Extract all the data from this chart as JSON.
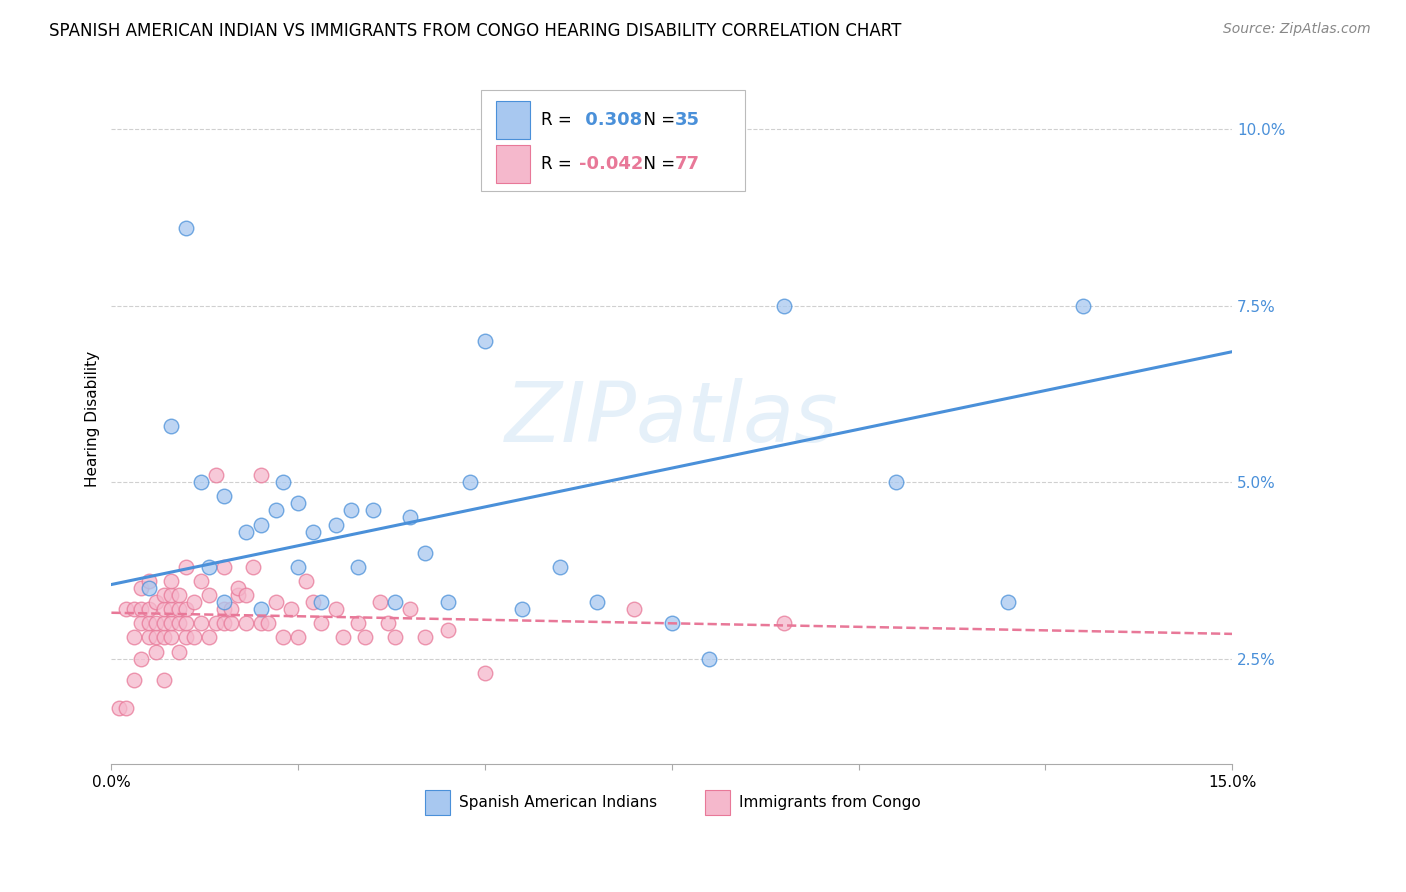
{
  "title": "SPANISH AMERICAN INDIAN VS IMMIGRANTS FROM CONGO HEARING DISABILITY CORRELATION CHART",
  "source": "Source: ZipAtlas.com",
  "ylabel": "Hearing Disability",
  "ytick_labels": [
    "2.5%",
    "5.0%",
    "7.5%",
    "10.0%"
  ],
  "ytick_values": [
    0.025,
    0.05,
    0.075,
    0.1
  ],
  "xlim": [
    0.0,
    0.15
  ],
  "ylim": [
    0.01,
    0.108
  ],
  "watermark": "ZIPatlas",
  "blue_R": 0.308,
  "blue_N": 35,
  "pink_R": -0.042,
  "pink_N": 77,
  "blue_label": "Spanish American Indians",
  "pink_label": "Immigrants from Congo",
  "blue_color": "#a8c8f0",
  "pink_color": "#f5b8cc",
  "blue_line_color": "#4a90d9",
  "pink_line_color": "#e87898",
  "blue_scatter_x": [
    0.005,
    0.008,
    0.01,
    0.012,
    0.013,
    0.015,
    0.015,
    0.018,
    0.02,
    0.02,
    0.022,
    0.023,
    0.025,
    0.025,
    0.027,
    0.028,
    0.03,
    0.032,
    0.033,
    0.035,
    0.038,
    0.04,
    0.042,
    0.045,
    0.048,
    0.05,
    0.055,
    0.06,
    0.065,
    0.075,
    0.08,
    0.09,
    0.105,
    0.12,
    0.13
  ],
  "blue_scatter_y": [
    0.035,
    0.058,
    0.086,
    0.05,
    0.038,
    0.048,
    0.033,
    0.043,
    0.044,
    0.032,
    0.046,
    0.05,
    0.047,
    0.038,
    0.043,
    0.033,
    0.044,
    0.046,
    0.038,
    0.046,
    0.033,
    0.045,
    0.04,
    0.033,
    0.05,
    0.07,
    0.032,
    0.038,
    0.033,
    0.03,
    0.025,
    0.075,
    0.05,
    0.033,
    0.075
  ],
  "pink_scatter_x": [
    0.001,
    0.002,
    0.002,
    0.003,
    0.003,
    0.003,
    0.004,
    0.004,
    0.004,
    0.004,
    0.005,
    0.005,
    0.005,
    0.005,
    0.006,
    0.006,
    0.006,
    0.006,
    0.007,
    0.007,
    0.007,
    0.007,
    0.007,
    0.008,
    0.008,
    0.008,
    0.008,
    0.008,
    0.009,
    0.009,
    0.009,
    0.009,
    0.01,
    0.01,
    0.01,
    0.01,
    0.011,
    0.011,
    0.012,
    0.012,
    0.013,
    0.013,
    0.014,
    0.014,
    0.015,
    0.015,
    0.015,
    0.016,
    0.016,
    0.017,
    0.017,
    0.018,
    0.018,
    0.019,
    0.02,
    0.02,
    0.021,
    0.022,
    0.023,
    0.024,
    0.025,
    0.026,
    0.027,
    0.028,
    0.03,
    0.031,
    0.033,
    0.034,
    0.036,
    0.037,
    0.038,
    0.04,
    0.042,
    0.045,
    0.05,
    0.07,
    0.09
  ],
  "pink_scatter_y": [
    0.018,
    0.032,
    0.018,
    0.028,
    0.032,
    0.022,
    0.03,
    0.032,
    0.035,
    0.025,
    0.028,
    0.03,
    0.032,
    0.036,
    0.026,
    0.028,
    0.03,
    0.033,
    0.028,
    0.03,
    0.032,
    0.034,
    0.022,
    0.028,
    0.03,
    0.032,
    0.034,
    0.036,
    0.026,
    0.03,
    0.032,
    0.034,
    0.028,
    0.03,
    0.032,
    0.038,
    0.028,
    0.033,
    0.03,
    0.036,
    0.028,
    0.034,
    0.051,
    0.03,
    0.03,
    0.032,
    0.038,
    0.03,
    0.032,
    0.034,
    0.035,
    0.03,
    0.034,
    0.038,
    0.03,
    0.051,
    0.03,
    0.033,
    0.028,
    0.032,
    0.028,
    0.036,
    0.033,
    0.03,
    0.032,
    0.028,
    0.03,
    0.028,
    0.033,
    0.03,
    0.028,
    0.032,
    0.028,
    0.029,
    0.023,
    0.032,
    0.03
  ],
  "blue_trendline_x": [
    0.0,
    0.15
  ],
  "blue_trendline_y": [
    0.0355,
    0.0685
  ],
  "pink_trendline_x": [
    0.0,
    0.15
  ],
  "pink_trendline_y": [
    0.0315,
    0.0285
  ],
  "grid_color": "#d0d0d0",
  "background_color": "#ffffff",
  "title_fontsize": 12,
  "axis_label_fontsize": 11,
  "tick_fontsize": 11,
  "source_fontsize": 10
}
